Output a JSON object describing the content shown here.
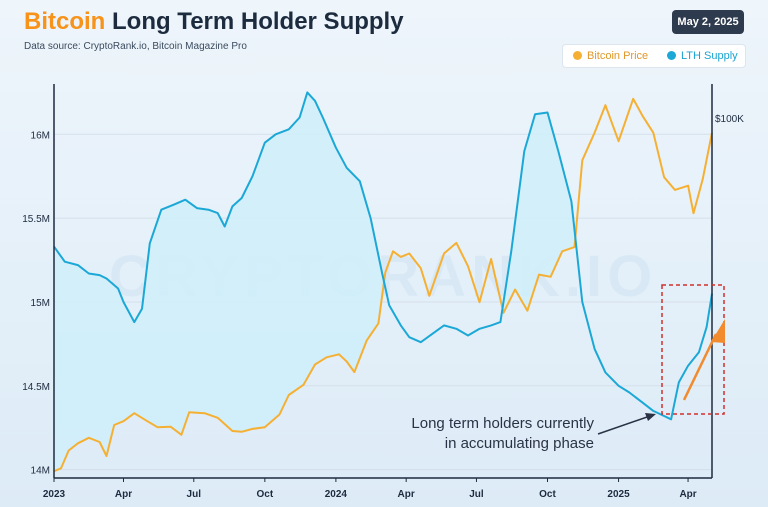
{
  "header": {
    "title_accent": "Bitcoin",
    "title_rest": "Long Term Holder Supply",
    "source": "Data source: CryptoRank.io, Bitcoin Magazine Pro",
    "date": "May 2, 2025"
  },
  "legend": {
    "btc_label": "Bitcoin Price",
    "lth_label": "LTH Supply"
  },
  "watermark": "CRYPTORANK.IO",
  "annotation": {
    "line1": "Long term holders currently",
    "line2": "in accumulating phase"
  },
  "colors": {
    "btc": "#f5b033",
    "lth": "#1ba8d6",
    "fill": "#cfeef9",
    "arrow": "#f28a2e",
    "box": "#d0302a"
  },
  "chart_data": {
    "type": "line",
    "title": "Long Term Holder Supply",
    "x_range": [
      "2023-01-01",
      "2025-05-02"
    ],
    "x_ticks": [
      {
        "label": "2023",
        "date": "2023-01-01"
      },
      {
        "label": "Apr",
        "date": "2023-04-01"
      },
      {
        "label": "Jul",
        "date": "2023-07-01"
      },
      {
        "label": "Oct",
        "date": "2023-10-01"
      },
      {
        "label": "2024",
        "date": "2024-01-01"
      },
      {
        "label": "Apr",
        "date": "2024-04-01"
      },
      {
        "label": "Jul",
        "date": "2024-07-01"
      },
      {
        "label": "Oct",
        "date": "2024-10-01"
      },
      {
        "label": "2025",
        "date": "2025-01-01"
      },
      {
        "label": "Apr",
        "date": "2025-04-01"
      }
    ],
    "y_left": {
      "min": 13.95,
      "max": 16.3,
      "ticks": [
        {
          "label": "14M",
          "value": 14
        },
        {
          "label": "14.5M",
          "value": 14.5
        },
        {
          "label": "15M",
          "value": 15
        },
        {
          "label": "15.5M",
          "value": 15.5
        },
        {
          "label": "16M",
          "value": 16
        }
      ]
    },
    "y_right": {
      "min": 15000,
      "max": 108000,
      "ticks": [
        {
          "label": "$100K",
          "value": 100000
        }
      ]
    },
    "grid": true,
    "legend_position": "top-right",
    "series": [
      {
        "name": "LTH Supply",
        "axis": "left",
        "points": [
          [
            "2023-01-01",
            15.33
          ],
          [
            "2023-01-15",
            15.24
          ],
          [
            "2023-02-01",
            15.22
          ],
          [
            "2023-02-15",
            15.17
          ],
          [
            "2023-03-01",
            15.16
          ],
          [
            "2023-03-10",
            15.14
          ],
          [
            "2023-03-25",
            15.08
          ],
          [
            "2023-04-01",
            15.0
          ],
          [
            "2023-04-15",
            14.88
          ],
          [
            "2023-04-25",
            14.96
          ],
          [
            "2023-05-05",
            15.35
          ],
          [
            "2023-05-20",
            15.55
          ],
          [
            "2023-06-05",
            15.58
          ],
          [
            "2023-06-20",
            15.61
          ],
          [
            "2023-07-05",
            15.56
          ],
          [
            "2023-07-20",
            15.55
          ],
          [
            "2023-08-01",
            15.53
          ],
          [
            "2023-08-10",
            15.45
          ],
          [
            "2023-08-20",
            15.57
          ],
          [
            "2023-09-01",
            15.62
          ],
          [
            "2023-09-15",
            15.75
          ],
          [
            "2023-10-01",
            15.95
          ],
          [
            "2023-10-15",
            16.0
          ],
          [
            "2023-11-01",
            16.03
          ],
          [
            "2023-11-15",
            16.1
          ],
          [
            "2023-11-25",
            16.25
          ],
          [
            "2023-12-05",
            16.2
          ],
          [
            "2023-12-15",
            16.1
          ],
          [
            "2024-01-01",
            15.92
          ],
          [
            "2024-01-15",
            15.8
          ],
          [
            "2024-02-01",
            15.72
          ],
          [
            "2024-02-15",
            15.5
          ],
          [
            "2024-03-01",
            15.17
          ],
          [
            "2024-03-10",
            14.98
          ],
          [
            "2024-03-25",
            14.86
          ],
          [
            "2024-04-05",
            14.79
          ],
          [
            "2024-04-20",
            14.76
          ],
          [
            "2024-05-05",
            14.81
          ],
          [
            "2024-05-20",
            14.86
          ],
          [
            "2024-06-05",
            14.84
          ],
          [
            "2024-06-20",
            14.8
          ],
          [
            "2024-07-05",
            14.84
          ],
          [
            "2024-07-20",
            14.86
          ],
          [
            "2024-08-01",
            14.88
          ],
          [
            "2024-08-15",
            15.3
          ],
          [
            "2024-09-01",
            15.9
          ],
          [
            "2024-09-15",
            16.12
          ],
          [
            "2024-10-01",
            16.13
          ],
          [
            "2024-10-15",
            15.9
          ],
          [
            "2024-11-01",
            15.6
          ],
          [
            "2024-11-15",
            15.0
          ],
          [
            "2024-12-01",
            14.72
          ],
          [
            "2024-12-15",
            14.58
          ],
          [
            "2025-01-01",
            14.5
          ],
          [
            "2025-01-15",
            14.46
          ],
          [
            "2025-02-01",
            14.4
          ],
          [
            "2025-02-15",
            14.35
          ],
          [
            "2025-03-01",
            14.32
          ],
          [
            "2025-03-10",
            14.3
          ],
          [
            "2025-03-20",
            14.52
          ],
          [
            "2025-04-01",
            14.62
          ],
          [
            "2025-04-15",
            14.7
          ],
          [
            "2025-04-25",
            14.85
          ],
          [
            "2025-05-02",
            15.05
          ]
        ]
      },
      {
        "name": "Bitcoin Price",
        "axis": "right",
        "points": [
          [
            "2023-01-01",
            16600
          ],
          [
            "2023-01-10",
            17300
          ],
          [
            "2023-01-20",
            21500
          ],
          [
            "2023-02-01",
            23200
          ],
          [
            "2023-02-15",
            24500
          ],
          [
            "2023-03-01",
            23500
          ],
          [
            "2023-03-10",
            20200
          ],
          [
            "2023-03-20",
            27500
          ],
          [
            "2023-04-01",
            28400
          ],
          [
            "2023-04-15",
            30300
          ],
          [
            "2023-05-01",
            28500
          ],
          [
            "2023-05-15",
            27000
          ],
          [
            "2023-06-01",
            27100
          ],
          [
            "2023-06-15",
            25200
          ],
          [
            "2023-06-25",
            30500
          ],
          [
            "2023-07-15",
            30300
          ],
          [
            "2023-08-01",
            29200
          ],
          [
            "2023-08-20",
            26100
          ],
          [
            "2023-09-01",
            25900
          ],
          [
            "2023-09-15",
            26600
          ],
          [
            "2023-10-01",
            27000
          ],
          [
            "2023-10-20",
            30000
          ],
          [
            "2023-11-01",
            34600
          ],
          [
            "2023-11-20",
            37000
          ],
          [
            "2023-12-05",
            41800
          ],
          [
            "2023-12-20",
            43500
          ],
          [
            "2024-01-05",
            44200
          ],
          [
            "2024-01-15",
            42500
          ],
          [
            "2024-01-25",
            40000
          ],
          [
            "2024-02-10",
            47500
          ],
          [
            "2024-02-25",
            51500
          ],
          [
            "2024-03-05",
            63500
          ],
          [
            "2024-03-15",
            68500
          ],
          [
            "2024-03-25",
            67200
          ],
          [
            "2024-04-05",
            68000
          ],
          [
            "2024-04-20",
            64500
          ],
          [
            "2024-05-01",
            58000
          ],
          [
            "2024-05-20",
            68000
          ],
          [
            "2024-06-05",
            70500
          ],
          [
            "2024-06-20",
            65000
          ],
          [
            "2024-07-05",
            56500
          ],
          [
            "2024-07-20",
            66700
          ],
          [
            "2024-08-05",
            54000
          ],
          [
            "2024-08-20",
            59500
          ],
          [
            "2024-09-05",
            54500
          ],
          [
            "2024-09-20",
            63000
          ],
          [
            "2024-10-05",
            62500
          ],
          [
            "2024-10-20",
            68500
          ],
          [
            "2024-11-05",
            69500
          ],
          [
            "2024-11-15",
            90000
          ],
          [
            "2024-12-01",
            96500
          ],
          [
            "2024-12-15",
            103000
          ],
          [
            "2025-01-01",
            94500
          ],
          [
            "2025-01-20",
            104500
          ],
          [
            "2025-02-01",
            100500
          ],
          [
            "2025-02-15",
            96500
          ],
          [
            "2025-03-01",
            86000
          ],
          [
            "2025-03-15",
            83000
          ],
          [
            "2025-04-01",
            84000
          ],
          [
            "2025-04-08",
            77500
          ],
          [
            "2025-04-20",
            85500
          ],
          [
            "2025-05-02",
            96500
          ]
        ]
      }
    ]
  }
}
